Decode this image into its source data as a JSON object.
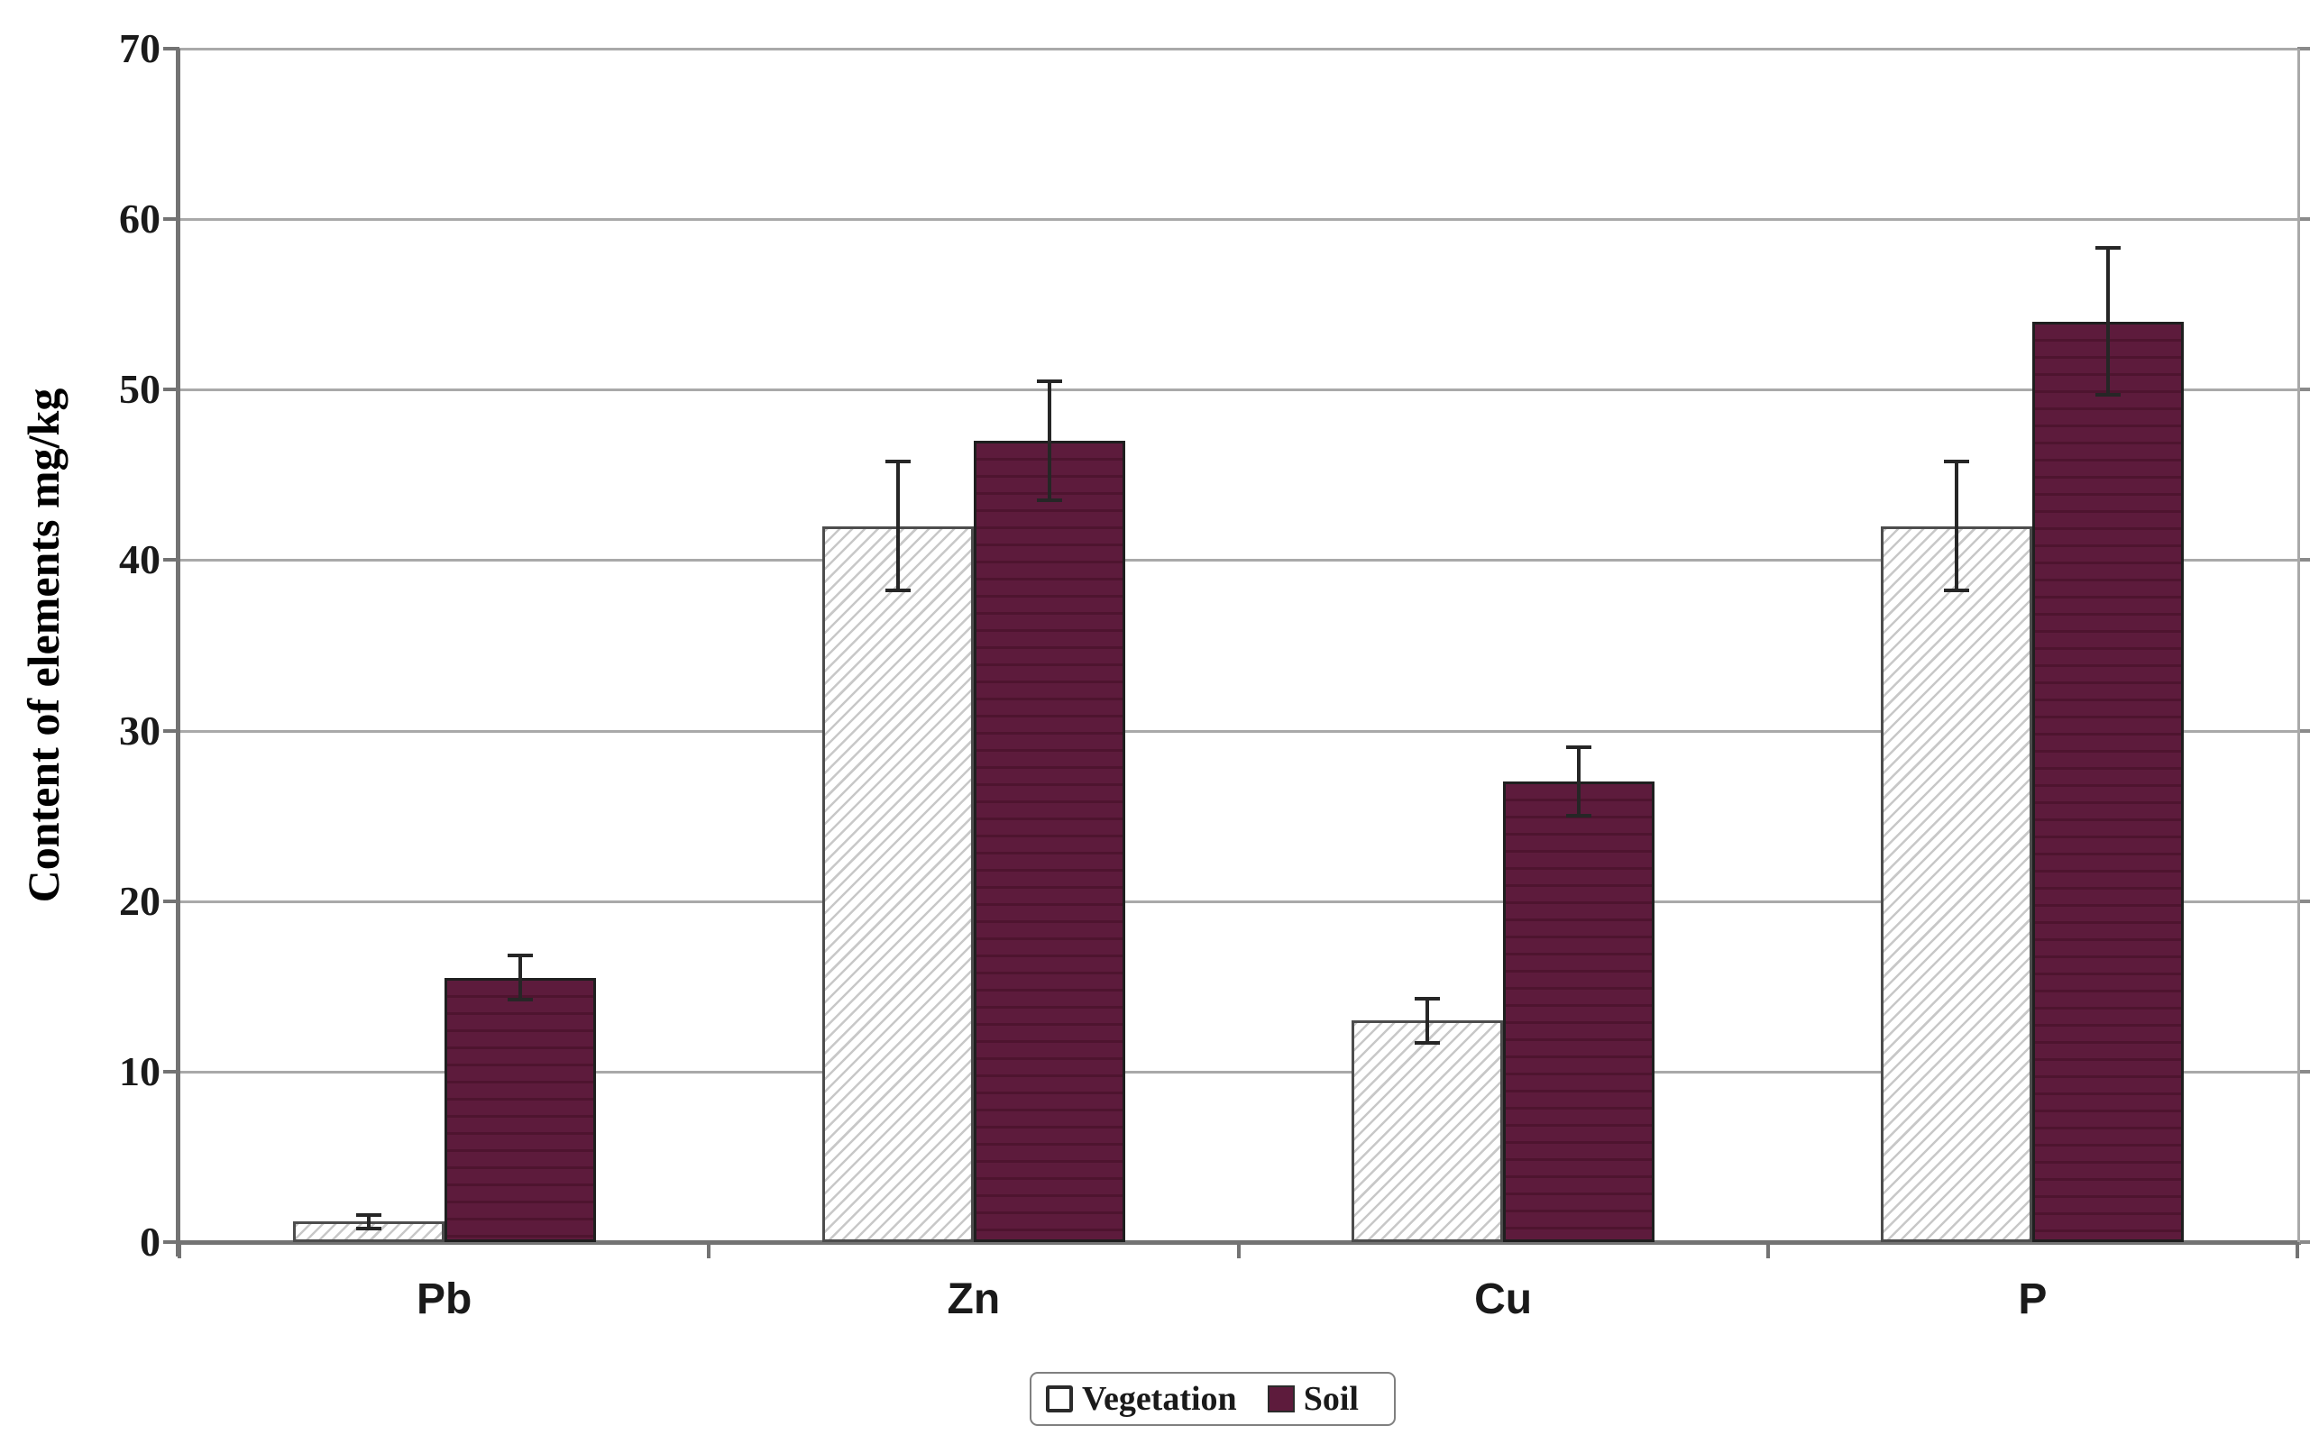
{
  "chart_data": {
    "type": "bar",
    "title": "",
    "xlabel": "",
    "ylabel": "Content of elements mg/kg",
    "categories": [
      "Pb",
      "Zn",
      "Cu",
      "P"
    ],
    "series": [
      {
        "name": "Vegetation",
        "style": "hatched",
        "values": [
          1.2,
          42,
          13,
          42
        ],
        "errors": [
          0.4,
          3.8,
          1.3,
          3.8
        ]
      },
      {
        "name": "Soil",
        "style": "solid",
        "values": [
          15.5,
          47,
          27,
          54
        ],
        "errors": [
          1.3,
          3.5,
          2.0,
          4.3
        ]
      }
    ],
    "ylim": [
      0,
      70
    ],
    "yticks": [
      0,
      10,
      20,
      30,
      40,
      50,
      60,
      70
    ],
    "grid": true,
    "error_bars": true,
    "legend_position": "bottom"
  },
  "colors": {
    "soil_fill": "#5d1b3c",
    "soil_stripe": "#4e142f",
    "hatch_line": "#c8c8c8",
    "grid": "#a9a9a9",
    "axis": "#737373",
    "error_bar": "#262626",
    "text": "#1a1a1a",
    "legend_border": "#808080"
  }
}
